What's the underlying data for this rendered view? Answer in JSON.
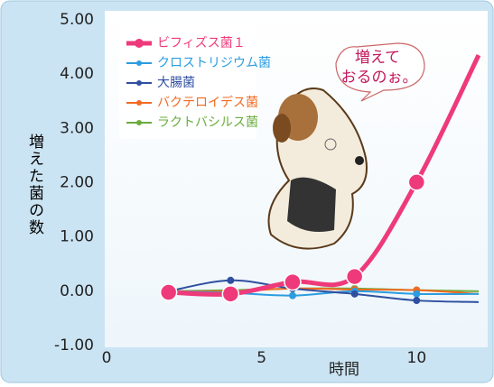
{
  "chart_data": {
    "type": "line",
    "y_label": "増えた菌の数",
    "x_label": "時間",
    "annotation": [
      "増えて",
      "おるのぉ。"
    ],
    "x": [
      2,
      4,
      6,
      8,
      10,
      12
    ],
    "xlim": [
      0,
      12
    ],
    "xticks": [
      0,
      5,
      10
    ],
    "ylim": [
      -1,
      5
    ],
    "yticks": [
      {
        "value": -1,
        "label": "-1.00"
      },
      {
        "value": 0,
        "label": "0.00"
      },
      {
        "value": 1,
        "label": "1.00"
      },
      {
        "value": 2,
        "label": "2.00"
      },
      {
        "value": 3,
        "label": "3.00"
      },
      {
        "value": 4,
        "label": "4.00"
      },
      {
        "value": 5,
        "label": "5.00"
      }
    ],
    "series": [
      {
        "name": "ビフィズス菌１",
        "color": "#ee3a7a",
        "values": [
          -0.02,
          -0.05,
          0.17,
          0.27,
          2.01,
          4.35
        ]
      },
      {
        "name": "クロストリジウム菌",
        "color": "#2a9de0",
        "values": [
          0,
          -0.03,
          -0.08,
          0.0,
          -0.05,
          -0.05
        ]
      },
      {
        "name": "大腸菌",
        "color": "#2f4fa0",
        "values": [
          0,
          0.2,
          0.05,
          -0.05,
          -0.17,
          -0.2
        ]
      },
      {
        "name": "バクテロイデス菌",
        "color": "#f06a22",
        "values": [
          0,
          0,
          0.05,
          0.03,
          0.02,
          -0.05
        ]
      },
      {
        "name": "ラクトバシルス菌",
        "color": "#6aac3c",
        "values": [
          0,
          0.02,
          0.05,
          0.05,
          0.02,
          0.0
        ]
      }
    ]
  }
}
